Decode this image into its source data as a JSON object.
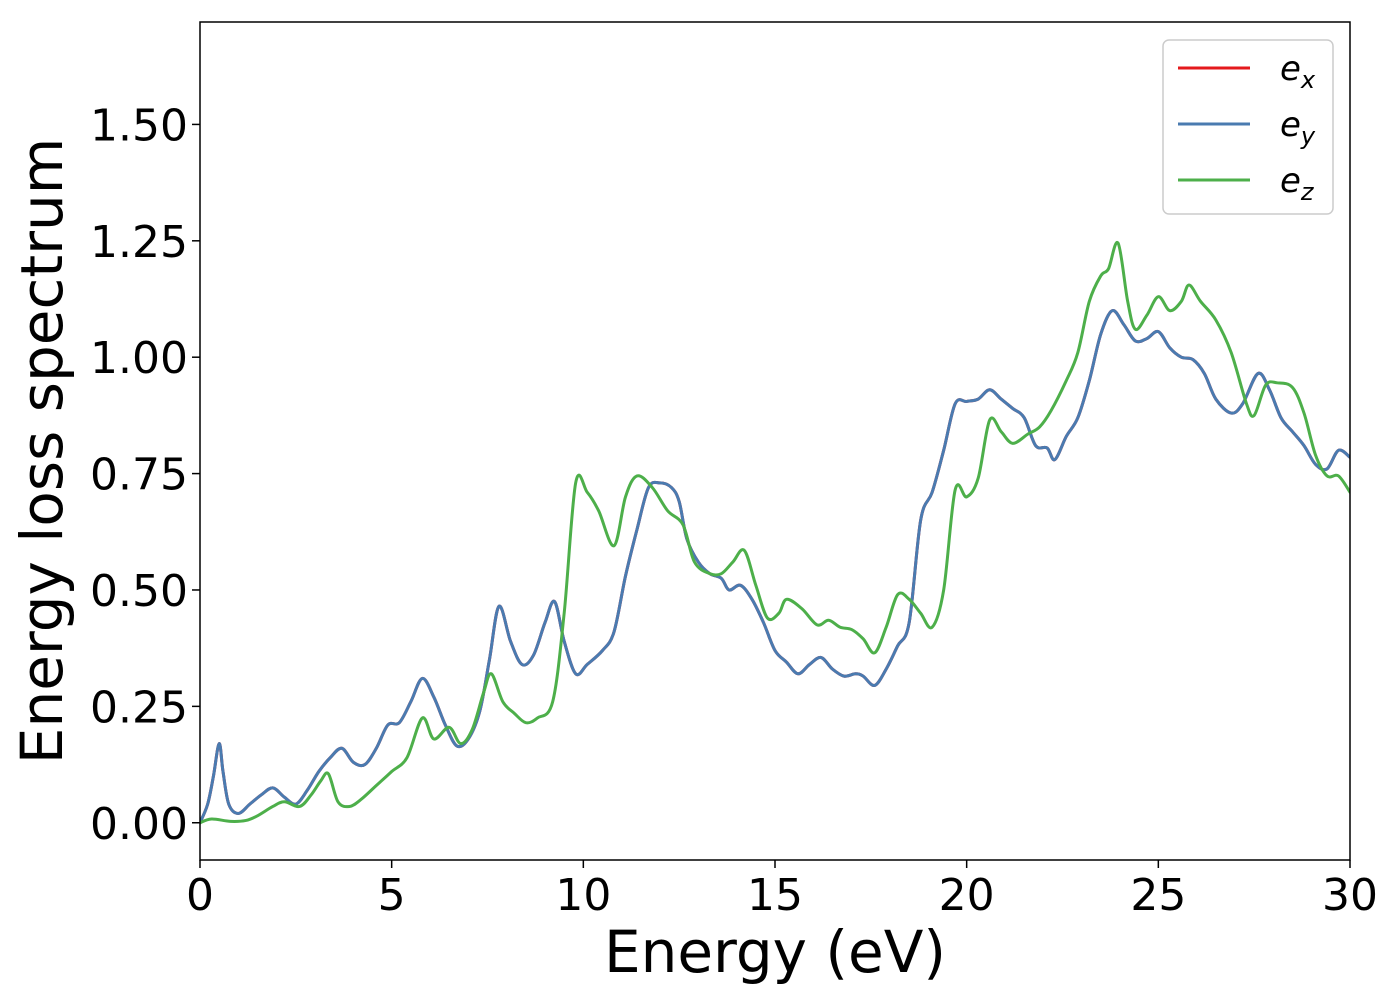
{
  "chart_data": {
    "type": "line",
    "title": "",
    "xlabel": "Energy (eV)",
    "ylabel": "Energy loss spectrum",
    "xlim": [
      0,
      30
    ],
    "ylim": [
      -0.08,
      1.72
    ],
    "xticks": [
      0,
      5,
      10,
      15,
      20,
      25,
      30
    ],
    "xtick_labels": [
      "0",
      "5",
      "10",
      "15",
      "20",
      "25",
      "30"
    ],
    "yticks": [
      0.0,
      0.25,
      0.5,
      0.75,
      1.0,
      1.25,
      1.5
    ],
    "ytick_labels": [
      "0.00",
      "0.25",
      "0.50",
      "0.75",
      "1.00",
      "1.25",
      "1.50"
    ],
    "grid": false,
    "legend_position": "top-right",
    "series": [
      {
        "name": "e_x",
        "label_base": "e",
        "label_sub": "x",
        "color": "#e41a1c",
        "points": [
          [
            0,
            0
          ],
          [
            0.2,
            0.04
          ],
          [
            0.35,
            0.1
          ],
          [
            0.5,
            0.17
          ],
          [
            0.6,
            0.11
          ],
          [
            0.75,
            0.04
          ],
          [
            1,
            0.02
          ],
          [
            1.3,
            0.04
          ],
          [
            1.6,
            0.06
          ],
          [
            1.9,
            0.075
          ],
          [
            2.2,
            0.055
          ],
          [
            2.5,
            0.04
          ],
          [
            2.8,
            0.07
          ],
          [
            3.1,
            0.11
          ],
          [
            3.4,
            0.14
          ],
          [
            3.7,
            0.16
          ],
          [
            4,
            0.13
          ],
          [
            4.3,
            0.125
          ],
          [
            4.6,
            0.16
          ],
          [
            4.9,
            0.21
          ],
          [
            5.2,
            0.215
          ],
          [
            5.5,
            0.26
          ],
          [
            5.8,
            0.31
          ],
          [
            6.1,
            0.27
          ],
          [
            6.4,
            0.21
          ],
          [
            6.7,
            0.165
          ],
          [
            7,
            0.18
          ],
          [
            7.3,
            0.24
          ],
          [
            7.55,
            0.35
          ],
          [
            7.8,
            0.465
          ],
          [
            8.1,
            0.39
          ],
          [
            8.4,
            0.34
          ],
          [
            8.7,
            0.36
          ],
          [
            9.0,
            0.43
          ],
          [
            9.25,
            0.475
          ],
          [
            9.5,
            0.39
          ],
          [
            9.8,
            0.32
          ],
          [
            10.1,
            0.34
          ],
          [
            10.5,
            0.37
          ],
          [
            10.8,
            0.41
          ],
          [
            11.1,
            0.53
          ],
          [
            11.4,
            0.63
          ],
          [
            11.7,
            0.72
          ],
          [
            12.0,
            0.73
          ],
          [
            12.3,
            0.72
          ],
          [
            12.5,
            0.69
          ],
          [
            12.7,
            0.61
          ],
          [
            13.0,
            0.56
          ],
          [
            13.3,
            0.535
          ],
          [
            13.6,
            0.525
          ],
          [
            13.8,
            0.5
          ],
          [
            14.1,
            0.51
          ],
          [
            14.4,
            0.48
          ],
          [
            14.7,
            0.43
          ],
          [
            15.0,
            0.37
          ],
          [
            15.3,
            0.345
          ],
          [
            15.6,
            0.32
          ],
          [
            15.9,
            0.34
          ],
          [
            16.2,
            0.355
          ],
          [
            16.5,
            0.33
          ],
          [
            16.8,
            0.315
          ],
          [
            17.1,
            0.32
          ],
          [
            17.3,
            0.315
          ],
          [
            17.6,
            0.295
          ],
          [
            17.9,
            0.33
          ],
          [
            18.2,
            0.38
          ],
          [
            18.5,
            0.43
          ],
          [
            18.8,
            0.65
          ],
          [
            19.1,
            0.71
          ],
          [
            19.4,
            0.8
          ],
          [
            19.7,
            0.9
          ],
          [
            20.0,
            0.905
          ],
          [
            20.3,
            0.91
          ],
          [
            20.6,
            0.93
          ],
          [
            20.9,
            0.91
          ],
          [
            21.2,
            0.89
          ],
          [
            21.5,
            0.87
          ],
          [
            21.8,
            0.81
          ],
          [
            22.1,
            0.805
          ],
          [
            22.3,
            0.78
          ],
          [
            22.6,
            0.83
          ],
          [
            22.9,
            0.87
          ],
          [
            23.2,
            0.95
          ],
          [
            23.5,
            1.05
          ],
          [
            23.8,
            1.1
          ],
          [
            24.1,
            1.07
          ],
          [
            24.4,
            1.035
          ],
          [
            24.7,
            1.04
          ],
          [
            25.0,
            1.055
          ],
          [
            25.3,
            1.02
          ],
          [
            25.6,
            1.0
          ],
          [
            25.9,
            0.995
          ],
          [
            26.2,
            0.965
          ],
          [
            26.5,
            0.91
          ],
          [
            26.9,
            0.88
          ],
          [
            27.2,
            0.9
          ],
          [
            27.6,
            0.965
          ],
          [
            27.9,
            0.93
          ],
          [
            28.2,
            0.87
          ],
          [
            28.5,
            0.84
          ],
          [
            28.8,
            0.81
          ],
          [
            29.1,
            0.77
          ],
          [
            29.4,
            0.76
          ],
          [
            29.7,
            0.8
          ],
          [
            30,
            0.785
          ]
        ]
      },
      {
        "name": "e_y",
        "label_base": "e",
        "label_sub": "y",
        "color": "#4a7bb0",
        "points": [
          [
            0,
            0
          ],
          [
            0.2,
            0.04
          ],
          [
            0.35,
            0.1
          ],
          [
            0.5,
            0.17
          ],
          [
            0.6,
            0.11
          ],
          [
            0.75,
            0.04
          ],
          [
            1,
            0.02
          ],
          [
            1.3,
            0.04
          ],
          [
            1.6,
            0.06
          ],
          [
            1.9,
            0.075
          ],
          [
            2.2,
            0.055
          ],
          [
            2.5,
            0.04
          ],
          [
            2.8,
            0.07
          ],
          [
            3.1,
            0.11
          ],
          [
            3.4,
            0.14
          ],
          [
            3.7,
            0.16
          ],
          [
            4,
            0.13
          ],
          [
            4.3,
            0.125
          ],
          [
            4.6,
            0.16
          ],
          [
            4.9,
            0.21
          ],
          [
            5.2,
            0.215
          ],
          [
            5.5,
            0.26
          ],
          [
            5.8,
            0.31
          ],
          [
            6.1,
            0.27
          ],
          [
            6.4,
            0.21
          ],
          [
            6.7,
            0.165
          ],
          [
            7,
            0.18
          ],
          [
            7.3,
            0.24
          ],
          [
            7.55,
            0.35
          ],
          [
            7.8,
            0.465
          ],
          [
            8.1,
            0.39
          ],
          [
            8.4,
            0.34
          ],
          [
            8.7,
            0.36
          ],
          [
            9.0,
            0.43
          ],
          [
            9.25,
            0.475
          ],
          [
            9.5,
            0.39
          ],
          [
            9.8,
            0.32
          ],
          [
            10.1,
            0.34
          ],
          [
            10.5,
            0.37
          ],
          [
            10.8,
            0.41
          ],
          [
            11.1,
            0.53
          ],
          [
            11.4,
            0.63
          ],
          [
            11.7,
            0.72
          ],
          [
            12.0,
            0.73
          ],
          [
            12.3,
            0.72
          ],
          [
            12.5,
            0.69
          ],
          [
            12.7,
            0.61
          ],
          [
            13.0,
            0.56
          ],
          [
            13.3,
            0.535
          ],
          [
            13.6,
            0.525
          ],
          [
            13.8,
            0.5
          ],
          [
            14.1,
            0.51
          ],
          [
            14.4,
            0.48
          ],
          [
            14.7,
            0.43
          ],
          [
            15.0,
            0.37
          ],
          [
            15.3,
            0.345
          ],
          [
            15.6,
            0.32
          ],
          [
            15.9,
            0.34
          ],
          [
            16.2,
            0.355
          ],
          [
            16.5,
            0.33
          ],
          [
            16.8,
            0.315
          ],
          [
            17.1,
            0.32
          ],
          [
            17.3,
            0.315
          ],
          [
            17.6,
            0.295
          ],
          [
            17.9,
            0.33
          ],
          [
            18.2,
            0.38
          ],
          [
            18.5,
            0.43
          ],
          [
            18.8,
            0.65
          ],
          [
            19.1,
            0.71
          ],
          [
            19.4,
            0.8
          ],
          [
            19.7,
            0.9
          ],
          [
            20.0,
            0.905
          ],
          [
            20.3,
            0.91
          ],
          [
            20.6,
            0.93
          ],
          [
            20.9,
            0.91
          ],
          [
            21.2,
            0.89
          ],
          [
            21.5,
            0.87
          ],
          [
            21.8,
            0.81
          ],
          [
            22.1,
            0.805
          ],
          [
            22.3,
            0.78
          ],
          [
            22.6,
            0.83
          ],
          [
            22.9,
            0.87
          ],
          [
            23.2,
            0.95
          ],
          [
            23.5,
            1.05
          ],
          [
            23.8,
            1.1
          ],
          [
            24.1,
            1.07
          ],
          [
            24.4,
            1.035
          ],
          [
            24.7,
            1.04
          ],
          [
            25.0,
            1.055
          ],
          [
            25.3,
            1.02
          ],
          [
            25.6,
            1.0
          ],
          [
            25.9,
            0.995
          ],
          [
            26.2,
            0.965
          ],
          [
            26.5,
            0.91
          ],
          [
            26.9,
            0.88
          ],
          [
            27.2,
            0.9
          ],
          [
            27.6,
            0.965
          ],
          [
            27.9,
            0.93
          ],
          [
            28.2,
            0.87
          ],
          [
            28.5,
            0.84
          ],
          [
            28.8,
            0.81
          ],
          [
            29.1,
            0.77
          ],
          [
            29.4,
            0.76
          ],
          [
            29.7,
            0.8
          ],
          [
            30,
            0.785
          ]
        ]
      },
      {
        "name": "e_z",
        "label_base": "e",
        "label_sub": "z",
        "color": "#4daf4a",
        "points": [
          [
            0,
            0
          ],
          [
            0.3,
            0.008
          ],
          [
            0.8,
            0.003
          ],
          [
            1.2,
            0.005
          ],
          [
            1.5,
            0.015
          ],
          [
            1.9,
            0.035
          ],
          [
            2.2,
            0.045
          ],
          [
            2.6,
            0.035
          ],
          [
            2.9,
            0.06
          ],
          [
            3.15,
            0.09
          ],
          [
            3.35,
            0.105
          ],
          [
            3.6,
            0.045
          ],
          [
            3.9,
            0.035
          ],
          [
            4.2,
            0.05
          ],
          [
            4.6,
            0.08
          ],
          [
            5.0,
            0.11
          ],
          [
            5.4,
            0.14
          ],
          [
            5.8,
            0.225
          ],
          [
            6.1,
            0.18
          ],
          [
            6.5,
            0.205
          ],
          [
            6.8,
            0.17
          ],
          [
            7.1,
            0.2
          ],
          [
            7.4,
            0.28
          ],
          [
            7.6,
            0.32
          ],
          [
            7.9,
            0.26
          ],
          [
            8.2,
            0.235
          ],
          [
            8.5,
            0.215
          ],
          [
            8.8,
            0.225
          ],
          [
            9.2,
            0.26
          ],
          [
            9.5,
            0.45
          ],
          [
            9.8,
            0.73
          ],
          [
            10.1,
            0.71
          ],
          [
            10.4,
            0.67
          ],
          [
            10.8,
            0.595
          ],
          [
            11.1,
            0.7
          ],
          [
            11.4,
            0.745
          ],
          [
            11.8,
            0.72
          ],
          [
            12.2,
            0.67
          ],
          [
            12.6,
            0.64
          ],
          [
            12.9,
            0.56
          ],
          [
            13.3,
            0.535
          ],
          [
            13.6,
            0.535
          ],
          [
            13.9,
            0.56
          ],
          [
            14.2,
            0.585
          ],
          [
            14.5,
            0.51
          ],
          [
            14.8,
            0.44
          ],
          [
            15.1,
            0.45
          ],
          [
            15.3,
            0.48
          ],
          [
            15.7,
            0.46
          ],
          [
            16.1,
            0.425
          ],
          [
            16.4,
            0.435
          ],
          [
            16.7,
            0.42
          ],
          [
            17.0,
            0.415
          ],
          [
            17.3,
            0.395
          ],
          [
            17.6,
            0.365
          ],
          [
            17.9,
            0.42
          ],
          [
            18.2,
            0.49
          ],
          [
            18.5,
            0.48
          ],
          [
            18.8,
            0.45
          ],
          [
            19.1,
            0.42
          ],
          [
            19.4,
            0.5
          ],
          [
            19.7,
            0.715
          ],
          [
            20.0,
            0.7
          ],
          [
            20.3,
            0.74
          ],
          [
            20.6,
            0.865
          ],
          [
            20.9,
            0.84
          ],
          [
            21.2,
            0.815
          ],
          [
            21.6,
            0.835
          ],
          [
            21.9,
            0.85
          ],
          [
            22.2,
            0.885
          ],
          [
            22.6,
            0.95
          ],
          [
            22.9,
            1.01
          ],
          [
            23.2,
            1.12
          ],
          [
            23.5,
            1.175
          ],
          [
            23.7,
            1.19
          ],
          [
            23.95,
            1.245
          ],
          [
            24.2,
            1.12
          ],
          [
            24.4,
            1.06
          ],
          [
            24.7,
            1.09
          ],
          [
            25.0,
            1.13
          ],
          [
            25.3,
            1.1
          ],
          [
            25.6,
            1.12
          ],
          [
            25.8,
            1.155
          ],
          [
            26.1,
            1.12
          ],
          [
            26.5,
            1.08
          ],
          [
            26.9,
            1.01
          ],
          [
            27.3,
            0.9
          ],
          [
            27.5,
            0.875
          ],
          [
            27.8,
            0.94
          ],
          [
            28.1,
            0.945
          ],
          [
            28.5,
            0.935
          ],
          [
            28.8,
            0.88
          ],
          [
            29.1,
            0.79
          ],
          [
            29.4,
            0.745
          ],
          [
            29.7,
            0.745
          ],
          [
            30,
            0.71
          ]
        ]
      }
    ]
  }
}
